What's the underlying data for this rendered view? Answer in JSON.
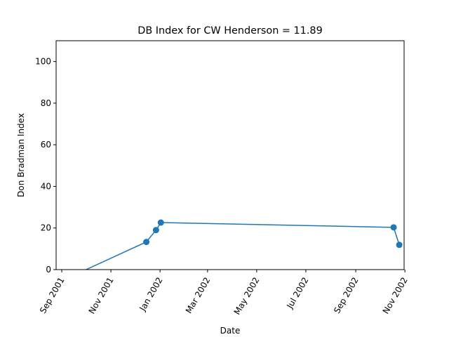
{
  "chart_data": {
    "type": "line",
    "title": "DB Index for CW Henderson = 11.89",
    "xlabel": "Date",
    "ylabel": "Don Bradman Index",
    "ylim": [
      0,
      110
    ],
    "xlim": [
      "2001-08-25",
      "2002-10-31"
    ],
    "yticks": [
      0,
      20,
      40,
      60,
      80,
      100
    ],
    "xticks": [
      {
        "date": "2001-09-01",
        "label": "Sep 2001"
      },
      {
        "date": "2001-11-01",
        "label": "Nov 2001"
      },
      {
        "date": "2002-01-01",
        "label": "Jan 2002"
      },
      {
        "date": "2002-03-01",
        "label": "Mar 2002"
      },
      {
        "date": "2002-05-01",
        "label": "May 2002"
      },
      {
        "date": "2002-07-01",
        "label": "Jul 2002"
      },
      {
        "date": "2002-09-01",
        "label": "Sep 2002"
      },
      {
        "date": "2002-11-01",
        "label": "Nov 2002"
      }
    ],
    "grid": false,
    "color": "#1f77b4",
    "series": [
      {
        "points": [
          {
            "x": "2001-09-20",
            "y": -2,
            "marker": false
          },
          {
            "x": "2001-12-15",
            "y": 13.3,
            "marker": true
          },
          {
            "x": "2001-12-27",
            "y": 19.0,
            "marker": true
          },
          {
            "x": "2002-01-02",
            "y": 22.6,
            "marker": true
          },
          {
            "x": "2002-10-18",
            "y": 20.3,
            "marker": true
          },
          {
            "x": "2002-10-25",
            "y": 11.89,
            "marker": true
          }
        ]
      }
    ]
  }
}
